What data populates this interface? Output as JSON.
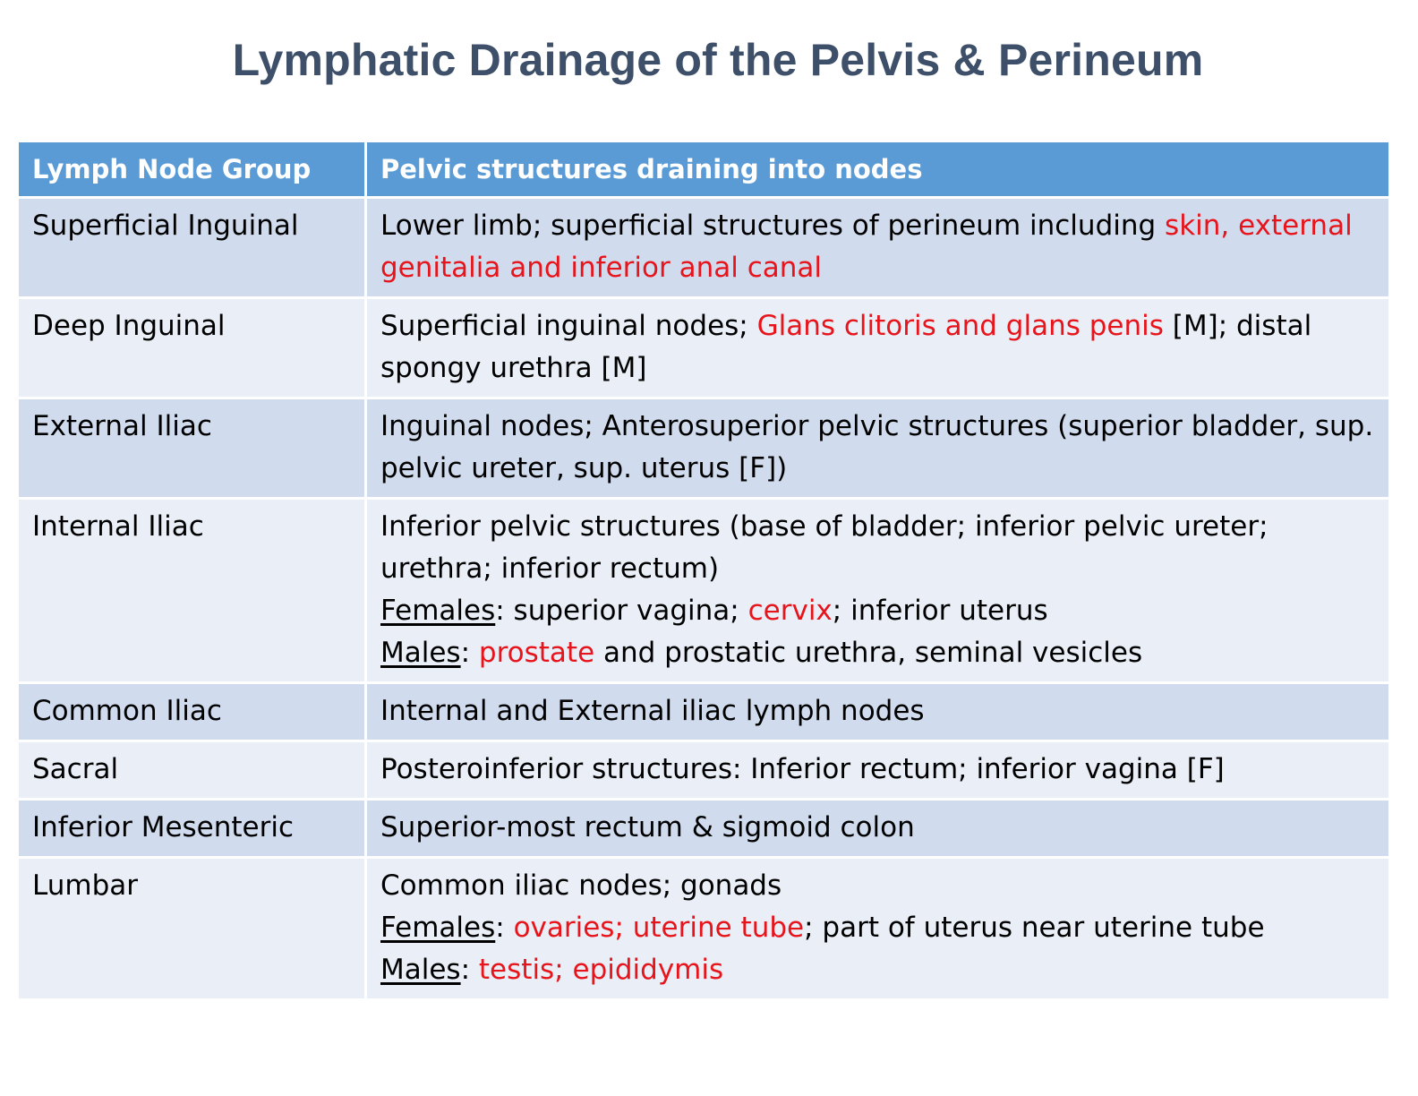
{
  "title": "Lymphatic Drainage of the Pelvis & Perineum",
  "colors": {
    "title": "#3e5069",
    "header_bg": "#5b9bd5",
    "row_dark": "#d0dcee",
    "row_light": "#e9eef7",
    "highlight": "#e8141b"
  },
  "table": {
    "headers": [
      "Lymph Node Group",
      "Pelvic structures draining into nodes"
    ],
    "rows": [
      {
        "group": "Superficial Inguinal",
        "c1": "Lower limb; superficial structures of perineum including ",
        "c2": "skin, external genitalia and inferior anal canal"
      },
      {
        "group": "Deep Inguinal",
        "c1": "Superficial inguinal nodes; ",
        "c2": "Glans clitoris and glans penis",
        "c3": " [M]; distal spongy urethra [M]"
      },
      {
        "group": "External Iliac",
        "c1": "Inguinal nodes; Anterosuperior pelvic structures (superior bladder, sup. pelvic ureter, sup. uterus [F])"
      },
      {
        "group": "Internal Iliac",
        "line1": "Inferior pelvic structures (base of bladder; inferior pelvic ureter; urethra; inferior rectum)",
        "females_label": "Females",
        "females_sep": ": superior vagina; ",
        "females_red": "cervix",
        "females_rest": "; inferior uterus",
        "males_label": "Males",
        "males_sep": ": ",
        "males_red": "prostate",
        "males_rest": " and prostatic urethra, seminal vesicles"
      },
      {
        "group": "Common Iliac",
        "c1": "Internal and External iliac lymph nodes"
      },
      {
        "group": "Sacral",
        "c1": "Posteroinferior structures: Inferior rectum; inferior vagina [F]"
      },
      {
        "group": "Inferior Mesenteric",
        "c1": "Superior-most rectum & sigmoid colon"
      },
      {
        "group": "Lumbar",
        "line1": "Common iliac nodes; gonads",
        "females_label": "Females",
        "females_sep": ": ",
        "females_red": "ovaries; uterine tube",
        "females_rest": "; part of uterus near uterine tube",
        "males_label": "Males",
        "males_sep": ": ",
        "males_red": "testis; epididymis"
      }
    ]
  }
}
